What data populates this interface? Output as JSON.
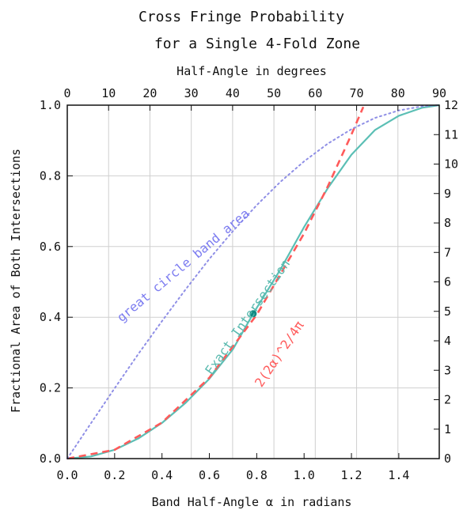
{
  "chart_data": {
    "type": "line",
    "title": [
      "Cross Fringe Probability",
      "for a Single 4-Fold Zone"
    ],
    "top_axis_label": "Half-Angle in degrees",
    "xlabel": "Band Half-Angle α in radians",
    "ylabel": "Fractional Area of Both Intersections",
    "xlim": [
      0,
      1.5708
    ],
    "ylim": [
      0,
      1
    ],
    "x_ticks": [
      "0.0",
      "0.2",
      "0.4",
      "0.6",
      "0.8",
      "1.0",
      "1.2",
      "1.4"
    ],
    "y_ticks": [
      "0.0",
      "0.2",
      "0.4",
      "0.6",
      "0.8",
      "1.0"
    ],
    "top_ticks": [
      "0",
      "10",
      "20",
      "30",
      "40",
      "50",
      "60",
      "70",
      "80",
      "90"
    ],
    "right_ticks": [
      "0",
      "1",
      "2",
      "3",
      "4",
      "5",
      "6",
      "7",
      "8",
      "9",
      "10",
      "11",
      "12"
    ],
    "grid": true,
    "series": [
      {
        "name": "Exact Intersection",
        "color": "#5bbfb5",
        "style": "solid",
        "x": [
          0,
          0.1,
          0.2,
          0.3,
          0.4,
          0.5,
          0.6,
          0.7,
          0.785,
          0.9,
          1.0,
          1.1,
          1.2,
          1.3,
          1.4,
          1.5,
          1.5708
        ],
        "y": [
          0,
          0.006,
          0.025,
          0.057,
          0.101,
          0.158,
          0.226,
          0.31,
          0.41,
          0.535,
          0.655,
          0.765,
          0.86,
          0.93,
          0.97,
          0.993,
          1.0
        ]
      },
      {
        "name": "2(2α)^2/4π",
        "color": "#ff5a5a",
        "style": "dashed",
        "x": [
          0,
          0.2,
          0.4,
          0.6,
          0.8,
          1.0,
          1.1,
          1.2,
          1.25
        ],
        "y": [
          0,
          0.025,
          0.102,
          0.229,
          0.407,
          0.637,
          0.77,
          0.917,
          0.995
        ]
      },
      {
        "name": "great circle band area",
        "color": "#8f8fe6",
        "style": "dotted",
        "x": [
          0,
          0.1,
          0.2,
          0.3,
          0.4,
          0.5,
          0.6,
          0.7,
          0.8,
          0.9,
          1.0,
          1.1,
          1.2,
          1.3,
          1.4,
          1.5,
          1.5708
        ],
        "y": [
          0,
          0.1,
          0.199,
          0.296,
          0.389,
          0.479,
          0.565,
          0.644,
          0.717,
          0.783,
          0.841,
          0.891,
          0.932,
          0.964,
          0.985,
          0.997,
          1.0
        ]
      }
    ],
    "marker": {
      "x": 0.785,
      "y": 0.41,
      "color": "#138a83"
    },
    "annotations": [
      {
        "text": "great circle band area",
        "color": "#7b7bf0",
        "at_x": 0.23,
        "at_y": 0.385,
        "rotate": -40
      },
      {
        "text": "Exact Intersection",
        "color": "#58b9ae",
        "at_x": 0.61,
        "at_y": 0.235,
        "rotate": -55
      },
      {
        "text": "2(2α)^2/4π",
        "color": "#ff5a5a",
        "at_x": 0.82,
        "at_y": 0.2,
        "rotate": -56
      }
    ],
    "styles": {
      "frame_color": "#111111",
      "grid_color": "#cfcfcf"
    }
  }
}
